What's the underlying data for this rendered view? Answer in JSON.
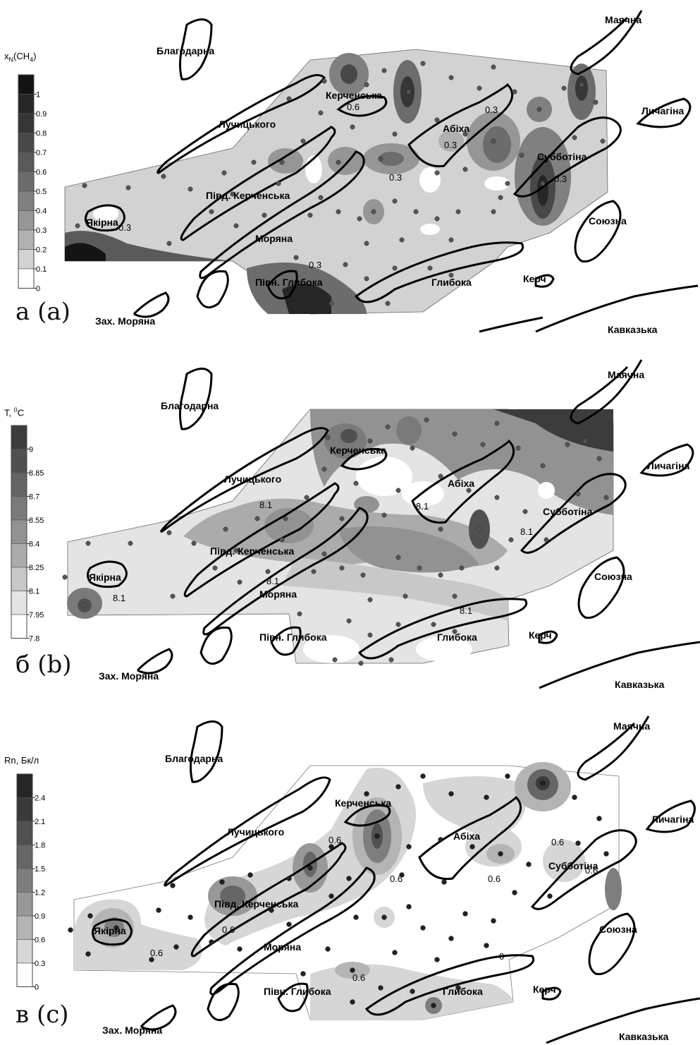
{
  "panels": [
    {
      "id": "a",
      "letter": "а (a)",
      "legend_title": {
        "base": "x",
        "sub1": "N",
        "mid": "(CH",
        "sub2": "4",
        "end": ")"
      },
      "ticks": [
        "1",
        "0.9",
        "0.8",
        "0.7",
        "0.6",
        "0.5",
        "0.4",
        "0.3",
        "0.2",
        "0.1",
        "0"
      ],
      "colors": [
        "#141414",
        "#262626",
        "#363636",
        "#484848",
        "#5a5a5a",
        "#6c6c6c",
        "#808080",
        "#969696",
        "#b0b0b0",
        "#d2d2d2",
        "#ffffff"
      ],
      "contour_labels": [
        "0.3",
        "0.3",
        "0.3",
        "0.3",
        "0.3",
        "0.3",
        "0.6"
      ]
    },
    {
      "id": "b",
      "letter": "б (b)",
      "legend_title": {
        "base": "T, ",
        "sup": "0",
        "end": "C"
      },
      "ticks": [
        "9",
        "8.85",
        "8.7",
        "8.55",
        "8.4",
        "8.25",
        "8.1",
        "7.95",
        "7.8"
      ],
      "colors": [
        "#3c3c3c",
        "#505050",
        "#646464",
        "#7a7a7a",
        "#929292",
        "#ababab",
        "#c8c8c8",
        "#e4e4e4",
        "#ffffff"
      ],
      "contour_labels": [
        "8.1",
        "8.1",
        "8.1",
        "8.1",
        "8.1",
        "8.1"
      ]
    },
    {
      "id": "c",
      "letter": "в (c)",
      "legend_title": {
        "base": "Rn, Бк/л"
      },
      "ticks": [
        "2.4",
        "2.1",
        "1.8",
        "1.5",
        "1.2",
        "0.9",
        "0.6",
        "0.3",
        "0"
      ],
      "colors": [
        "#262626",
        "#3a3a3a",
        "#505050",
        "#666666",
        "#7e7e7e",
        "#989898",
        "#b4b4b4",
        "#d6d6d6",
        "#ffffff"
      ],
      "contour_labels": [
        "0.6",
        "0.6",
        "0.6",
        "0.6",
        "0.6",
        "0.6",
        "0.6",
        "0.6",
        "0"
      ]
    }
  ],
  "field_names": {
    "mayachna": "Маячна",
    "blagodarna": "Благодарна",
    "lychagina": "Личагіна",
    "kerchenska": "Керченська",
    "luchytskogo": "Лучицького",
    "abikha": "Абіха",
    "subbotina": "Субботіна",
    "pivd_kerchenska": "Півд. Керченська",
    "soyuzna": "Союзна",
    "yakirna": "Якірна",
    "moryana": "Моряна",
    "pivn_hlyboka": "Півн. Глибока",
    "hlyboka": "Глибока",
    "kerch": "Керч",
    "zakh_moryana": "Зах. Моряна",
    "kavkazka": "Кавказька"
  }
}
